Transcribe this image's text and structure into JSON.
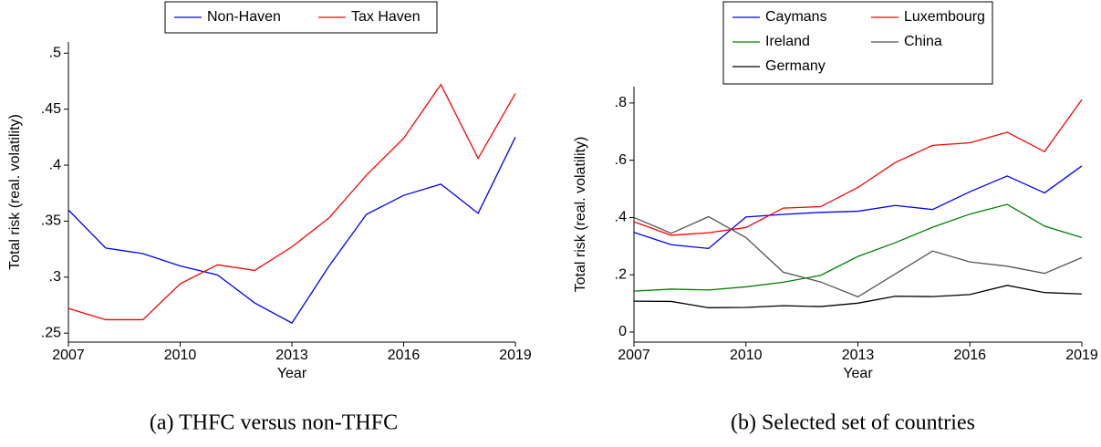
{
  "chart_data": [
    {
      "type": "line",
      "caption": "(a) THFC versus non-THFC",
      "xlabel": "Year",
      "ylabel": "Total risk (real. volatility)",
      "x": [
        2007,
        2008,
        2009,
        2010,
        2011,
        2012,
        2013,
        2014,
        2015,
        2016,
        2017,
        2018,
        2019
      ],
      "series": [
        {
          "name": "Non-Haven",
          "color": "#0000ff",
          "values": [
            0.36,
            0.326,
            0.321,
            0.31,
            0.302,
            0.277,
            0.259,
            0.31,
            0.356,
            0.373,
            0.383,
            0.357,
            0.425
          ]
        },
        {
          "name": "Tax Haven",
          "color": "#ff0000",
          "values": [
            0.272,
            0.262,
            0.262,
            0.294,
            0.311,
            0.306,
            0.327,
            0.353,
            0.391,
            0.424,
            0.472,
            0.406,
            0.464
          ]
        }
      ],
      "xlim": [
        2007,
        2019
      ],
      "xticks": [
        2007,
        2010,
        2013,
        2016,
        2019
      ],
      "ylim": [
        0.242,
        0.51
      ],
      "yticks": [
        {
          "value": 0.25,
          "label": ".25"
        },
        {
          "value": 0.3,
          "label": ".3"
        },
        {
          "value": 0.35,
          "label": ".35"
        },
        {
          "value": 0.4,
          "label": ".4"
        },
        {
          "value": 0.45,
          "label": ".45"
        },
        {
          "value": 0.5,
          "label": ".5"
        }
      ],
      "legend": "top"
    },
    {
      "type": "line",
      "caption": "(b) Selected set of countries",
      "xlabel": "Year",
      "ylabel": "Total risk (real. volatility)",
      "x": [
        2007,
        2008,
        2009,
        2010,
        2011,
        2012,
        2013,
        2014,
        2015,
        2016,
        2017,
        2018,
        2019
      ],
      "series": [
        {
          "name": "Caymans",
          "color": "#0000ff",
          "values": [
            0.348,
            0.305,
            0.292,
            0.402,
            0.411,
            0.418,
            0.422,
            0.442,
            0.428,
            0.49,
            0.545,
            0.486,
            0.58
          ]
        },
        {
          "name": "Luxembourg",
          "color": "#ff0000",
          "values": [
            0.385,
            0.338,
            0.347,
            0.365,
            0.433,
            0.438,
            0.505,
            0.592,
            0.652,
            0.661,
            0.698,
            0.63,
            0.812
          ]
        },
        {
          "name": "Ireland",
          "color": "#008000",
          "values": [
            0.143,
            0.15,
            0.147,
            0.158,
            0.174,
            0.198,
            0.264,
            0.312,
            0.366,
            0.412,
            0.446,
            0.37,
            0.33
          ]
        },
        {
          "name": "China",
          "color": "#555555",
          "values": [
            0.4,
            0.345,
            0.403,
            0.33,
            0.209,
            0.175,
            0.123,
            0.203,
            0.283,
            0.245,
            0.23,
            0.205,
            0.26
          ]
        },
        {
          "name": "Germany",
          "color": "#000000",
          "values": [
            0.108,
            0.107,
            0.085,
            0.086,
            0.092,
            0.089,
            0.101,
            0.125,
            0.124,
            0.131,
            0.163,
            0.138,
            0.133
          ]
        }
      ],
      "xlim": [
        2007,
        2019
      ],
      "xticks": [
        2007,
        2010,
        2013,
        2016,
        2019
      ],
      "ylim": [
        -0.035,
        0.857
      ],
      "yticks": [
        0,
        {
          "value": 0.2,
          "label": ".2"
        },
        {
          "value": 0.4,
          "label": ".4"
        },
        {
          "value": 0.6,
          "label": ".6"
        },
        {
          "value": 0.8,
          "label": ".8"
        }
      ],
      "legend": "top"
    }
  ]
}
